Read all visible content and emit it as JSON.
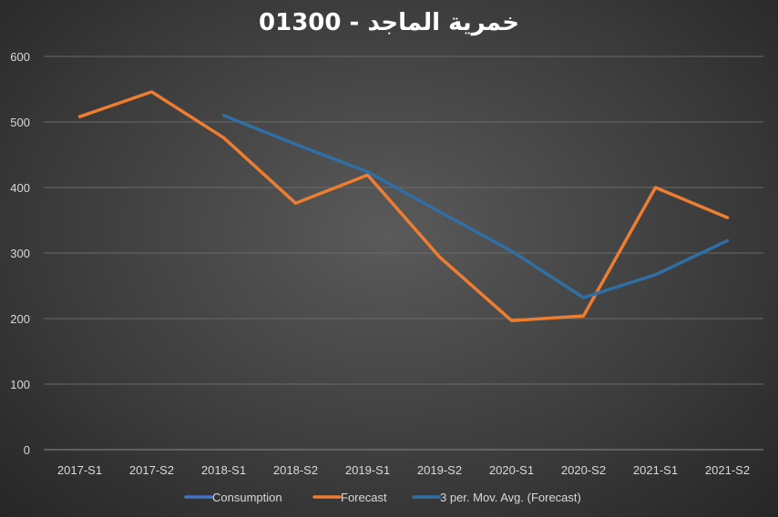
{
  "chart_data": {
    "type": "line",
    "title": "01300 - خمرية الماجد",
    "categories": [
      "2017-S1",
      "2017-S2",
      "2018-S1",
      "2018-S2",
      "2019-S1",
      "2019-S2",
      "2020-S1",
      "2020-S2",
      "2021-S1",
      "2021-S2"
    ],
    "ylim": [
      0,
      600
    ],
    "yticks": [
      0,
      100,
      200,
      300,
      400,
      500,
      600
    ],
    "grid": true,
    "legend_position": "bottom",
    "series": [
      {
        "name": "Consumption",
        "color": "#4472c4",
        "values": [
          null,
          null,
          null,
          null,
          null,
          null,
          null,
          null,
          null,
          null
        ]
      },
      {
        "name": "Forecast",
        "color": "#ed7d31",
        "values": [
          508,
          546,
          476,
          376,
          419,
          294,
          197,
          204,
          400,
          354
        ]
      },
      {
        "name": "3 per. Mov. Avg. (Forecast)",
        "color": "#2f6fa6",
        "values": [
          null,
          null,
          510,
          466,
          424,
          363,
          303,
          232,
          267,
          319
        ]
      }
    ]
  }
}
